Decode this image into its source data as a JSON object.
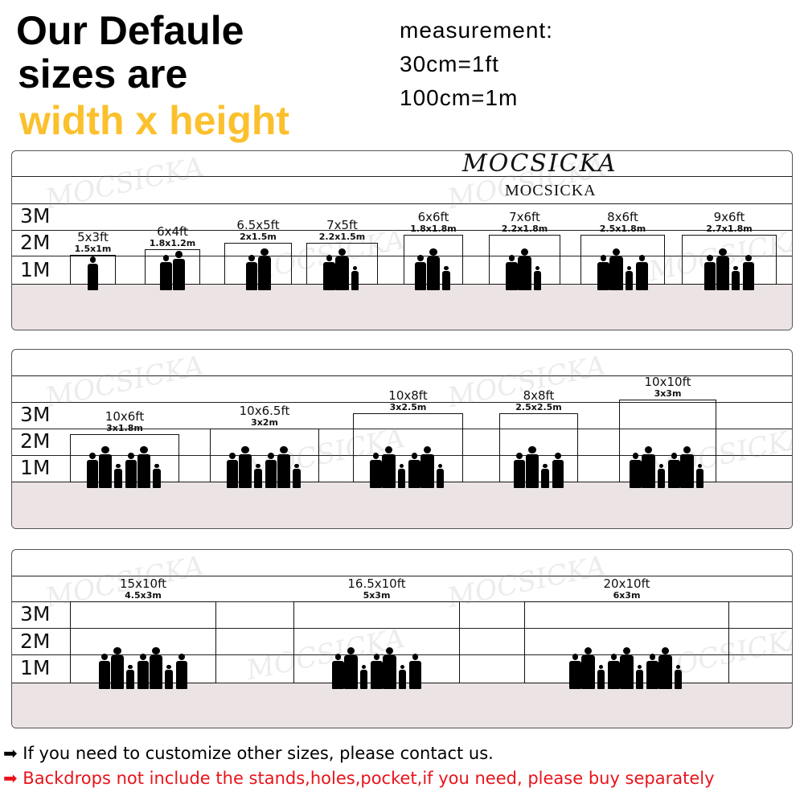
{
  "header": {
    "title_line1": "Our Defaule",
    "title_line2": "sizes are",
    "title_line3": "width x height",
    "measurement_label": "measurement:",
    "measurement_ft": "30cm=1ft",
    "measurement_m": "100cm=1m"
  },
  "colors": {
    "accent": "#fbc02d",
    "floor": "#ece4e4",
    "warning": "#e8141b"
  },
  "logo": {
    "script": "MOCSICKA",
    "text": "MOCSICKA"
  },
  "watermark": "MOCSICKA",
  "row_labels": [
    "3M",
    "2M",
    "1M"
  ],
  "panels": [
    {
      "sizes": [
        {
          "ft": "5x3ft",
          "m": "1.5x1m",
          "people": 1
        },
        {
          "ft": "6x4ft",
          "m": "1.8x1.2m",
          "people": 2
        },
        {
          "ft": "6.5x5ft",
          "m": "2x1.5m",
          "people": 2
        },
        {
          "ft": "7x5ft",
          "m": "2.2x1.5m",
          "people": 3
        },
        {
          "ft": "6x6ft",
          "m": "1.8x1.8m",
          "people": 3
        },
        {
          "ft": "7x6ft",
          "m": "2.2x1.8m",
          "people": 3
        },
        {
          "ft": "8x6ft",
          "m": "2.5x1.8m",
          "people": 4
        },
        {
          "ft": "9x6ft",
          "m": "2.7x1.8m",
          "people": 4
        }
      ]
    },
    {
      "sizes": [
        {
          "ft": "10x6ft",
          "m": "3x1.8m",
          "people": 6
        },
        {
          "ft": "10x6.5ft",
          "m": "3x2m",
          "people": 6
        },
        {
          "ft": "10x8ft",
          "m": "3x2.5m",
          "people": 6
        },
        {
          "ft": "8x8ft",
          "m": "2.5x2.5m",
          "people": 4
        },
        {
          "ft": "10x10ft",
          "m": "3x3m",
          "people": 6
        }
      ]
    },
    {
      "sizes": [
        {
          "ft": "15x10ft",
          "m": "4.5x3m",
          "people": 7
        },
        {
          "ft": "16.5x10ft",
          "m": "5x3m",
          "people": 7
        },
        {
          "ft": "20x10ft",
          "m": "6x3m",
          "people": 9
        }
      ]
    }
  ],
  "notes": [
    {
      "text": "If you need to customize other sizes, please contact us.",
      "color": "#000000"
    },
    {
      "text": "Backdrops not include the stands,holes,pocket,if you need, please buy separately",
      "color": "#e8141b"
    }
  ]
}
